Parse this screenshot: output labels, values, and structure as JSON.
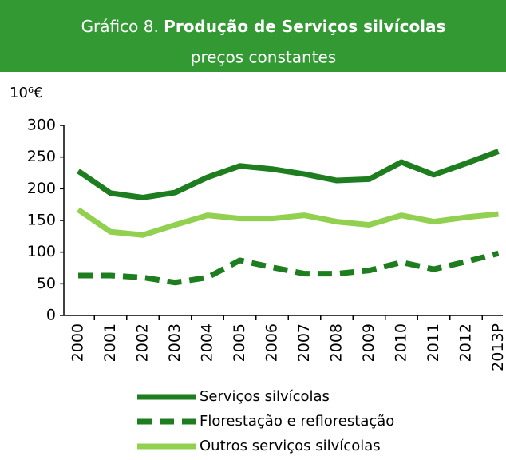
{
  "chart_data": {
    "type": "line",
    "title_prefix": "Gráfico 8.",
    "title": "Produção de Serviços silvícolas",
    "subtitle": "preços constantes",
    "y_label": "10⁶€",
    "categories": [
      "2000",
      "2001",
      "2002",
      "2003",
      "2004",
      "2005",
      "2006",
      "2007",
      "2008",
      "2009",
      "2010",
      "2011",
      "2012",
      "2013P"
    ],
    "series": [
      {
        "name": "Serviços silvícolas",
        "color": "#1e7d1e",
        "dash": false,
        "values": [
          228,
          193,
          186,
          194,
          218,
          236,
          231,
          223,
          213,
          215,
          242,
          222,
          240,
          259
        ]
      },
      {
        "name": "Florestação e reflorestação",
        "color": "#1e7d1e",
        "dash": true,
        "values": [
          63,
          63,
          60,
          52,
          60,
          87,
          76,
          66,
          66,
          71,
          84,
          73,
          85,
          98
        ]
      },
      {
        "name": "Outros serviços silvícolas",
        "color": "#92d050",
        "dash": false,
        "values": [
          167,
          132,
          127,
          143,
          158,
          153,
          153,
          158,
          148,
          143,
          158,
          148,
          155,
          160
        ]
      }
    ],
    "ylim": [
      0,
      300
    ],
    "yticks": [
      0,
      50,
      100,
      150,
      200,
      250,
      300
    ]
  }
}
